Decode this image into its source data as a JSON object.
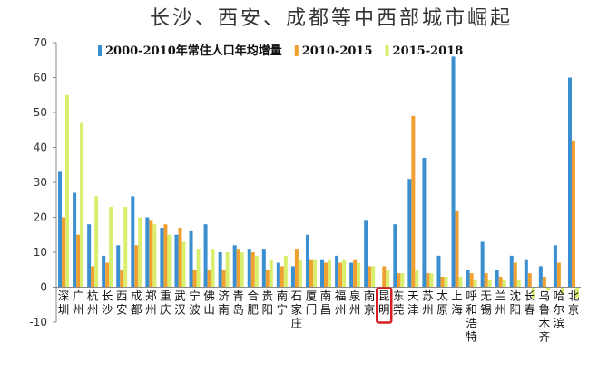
{
  "chart_data": {
    "type": "bar",
    "title": "长沙、西安、成都等中西部城市崛起",
    "xlabel": "",
    "ylabel": "",
    "ylim": [
      -10,
      70
    ],
    "yticks": [
      -10,
      0,
      10,
      20,
      30,
      40,
      50,
      60,
      70
    ],
    "grid": false,
    "legend_position": "top",
    "highlighted_category": "昆明",
    "categories": [
      "深圳",
      "广州",
      "杭州",
      "长沙",
      "西安",
      "成都",
      "郑州",
      "重庆",
      "武汉",
      "宁波",
      "佛山",
      "济南",
      "青岛",
      "合肥",
      "贵阳",
      "南宁",
      "石家庄",
      "厦门",
      "南昌",
      "福州",
      "泉州",
      "南京",
      "昆明",
      "东莞",
      "天津",
      "苏州",
      "太原",
      "上海",
      "呼和浩特",
      "无锡",
      "兰州",
      "沈阳",
      "长春",
      "乌鲁木齐",
      "哈尔滨",
      "北京"
    ],
    "series": [
      {
        "name": "2000-2010年常住人口年均增量",
        "color": "#3a8fd0",
        "values": [
          33,
          27,
          18,
          9,
          12,
          26,
          20,
          17,
          15,
          16,
          18,
          10,
          12,
          11,
          11,
          7,
          6,
          15,
          8,
          9,
          7,
          19,
          0,
          18,
          31,
          37,
          9,
          66,
          5,
          13,
          5,
          9,
          8,
          6,
          12,
          60
        ]
      },
      {
        "name": "2010-2015",
        "color": "#f0a030",
        "values": [
          20,
          15,
          6,
          7,
          5,
          12,
          19,
          18,
          17,
          5,
          5,
          5,
          11,
          10,
          5,
          6,
          11,
          8,
          7,
          7,
          8,
          6,
          6,
          4,
          49,
          4,
          3,
          22,
          4,
          4,
          3,
          7,
          4,
          3,
          7,
          42
        ]
      },
      {
        "name": "2015-2018",
        "color": "#d8ee6c",
        "values": [
          55,
          47,
          26,
          23,
          23,
          20,
          18,
          15,
          13,
          11,
          11,
          10,
          10,
          9,
          8,
          9,
          8,
          8,
          8,
          8,
          7,
          6,
          5,
          4,
          5,
          4,
          3,
          3,
          2,
          2,
          2,
          2,
          -3,
          -1,
          -2,
          -3
        ]
      }
    ]
  }
}
